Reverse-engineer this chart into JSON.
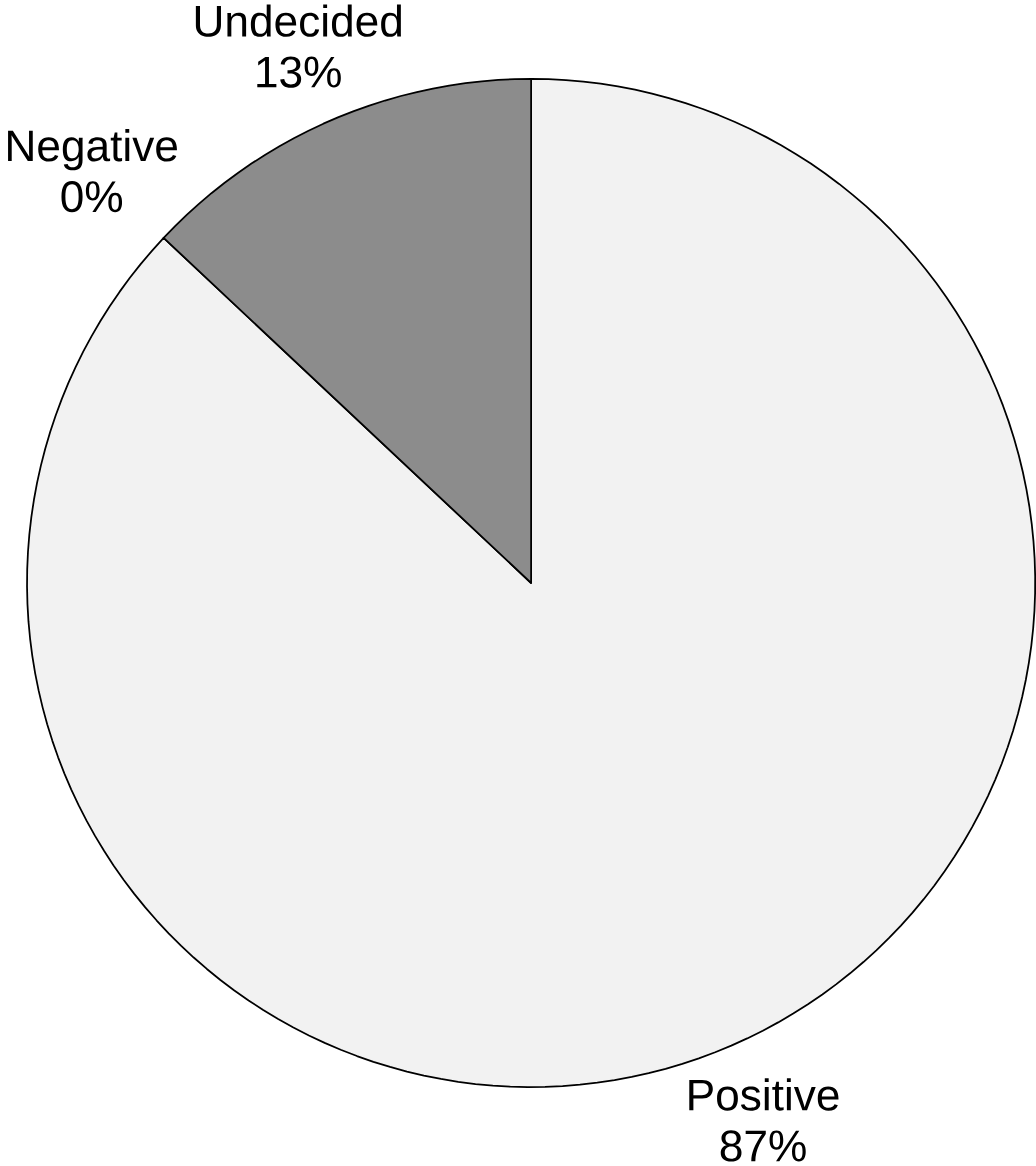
{
  "chart_data": {
    "type": "pie",
    "categories": [
      "Positive",
      "Negative",
      "Undecided"
    ],
    "values": [
      87,
      0,
      13
    ],
    "value_labels": [
      "87%",
      "0%",
      "13%"
    ],
    "colors": [
      "#f2f2f2",
      "#ffffff",
      "#8c8c8c"
    ]
  }
}
